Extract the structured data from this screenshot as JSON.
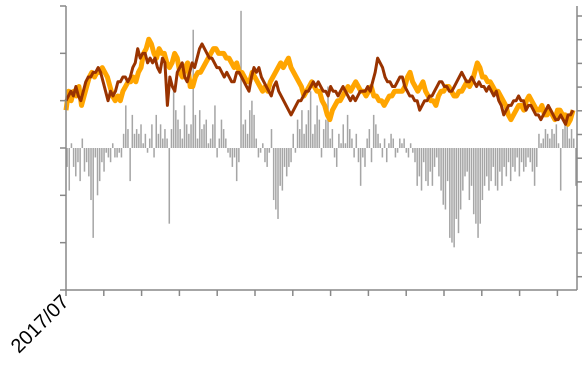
{
  "chart_data": {
    "type": "line",
    "title": "",
    "x_tick_labels": [
      "2017/07"
    ],
    "series": [
      {
        "role": "bar",
        "color": "#a6a6a6",
        "values": [
          -0.4,
          -0.9,
          0.1,
          -0.4,
          -0.6,
          -0.3,
          -0.7,
          0.2,
          -0.5,
          -0.3,
          -0.6,
          -1.1,
          -1.9,
          -0.2,
          -1.0,
          -0.7,
          -0.3,
          -0.5,
          -0.1,
          -0.2,
          -0.3,
          0.1,
          -0.2,
          -0.2,
          -0.1,
          -0.2,
          0.3,
          0.9,
          0.4,
          -0.7,
          0.7,
          0.3,
          0.4,
          0.3,
          0.5,
          0.1,
          0.3,
          -0.1,
          0.2,
          0.5,
          -0.2,
          0.7,
          0.3,
          0.5,
          0.2,
          0.4,
          0.2,
          -1.6,
          0.4,
          1.2,
          0.8,
          0.6,
          0.4,
          0.2,
          0.9,
          0.5,
          0.3,
          0.5,
          2.5,
          0.7,
          0.2,
          0.8,
          0.4,
          0.5,
          0.6,
          0.1,
          0.2,
          0.5,
          0.9,
          -0.2,
          0.2,
          0.6,
          0.4,
          0.2,
          -0.1,
          -0.2,
          -0.4,
          -0.2,
          -0.7,
          -0.3,
          2.9,
          0.5,
          0.6,
          0.3,
          0.8,
          1.0,
          0.7,
          0.2,
          -0.2,
          -0.1,
          0.1,
          -0.3,
          -0.4,
          -0.1,
          0.4,
          -1.1,
          -1.3,
          -1.5,
          -0.8,
          -0.9,
          -0.4,
          -0.6,
          -0.4,
          -0.3,
          0.3,
          -0.1,
          0.6,
          0.4,
          0.8,
          0.3,
          0.5,
          0.8,
          1.2,
          0.3,
          0.5,
          0.9,
          0.6,
          -0.2,
          0.4,
          0.6,
          1.3,
          0.2,
          0.4,
          -0.2,
          -0.4,
          0.3,
          0.1,
          0.5,
          0.1,
          0.7,
          0.4,
          0.2,
          -0.2,
          0.3,
          -0.3,
          -0.8,
          -0.2,
          -0.4,
          0.2,
          0.4,
          -0.3,
          0.7,
          0.5,
          0.3,
          0.1,
          -0.2,
          0.2,
          -0.3,
          0.1,
          0.3,
          0.2,
          -0.2,
          -0.1,
          0.2,
          0.1,
          0.2,
          -0.1,
          -0.2,
          0.1,
          -0.1,
          -0.3,
          -0.8,
          -0.6,
          -0.9,
          -0.3,
          -0.7,
          -0.8,
          -0.5,
          -0.8,
          -0.4,
          -0.2,
          -0.6,
          -0.9,
          -1.2,
          -1.3,
          -0.7,
          -1.9,
          -2.0,
          -2.1,
          -1.5,
          -1.8,
          -1.3,
          -0.9,
          -0.6,
          -0.5,
          -1.1,
          -0.8,
          -1.4,
          -1.6,
          -1.9,
          -1.6,
          -1.1,
          -0.8,
          -0.6,
          -0.9,
          -0.7,
          -0.4,
          -0.8,
          -0.9,
          -0.5,
          -0.8,
          -0.4,
          -0.6,
          -0.3,
          -0.7,
          -0.4,
          -0.5,
          -0.2,
          -0.6,
          -0.3,
          -0.5,
          -0.4,
          -0.2,
          -0.3,
          -0.5,
          -0.8,
          -0.4,
          0.3,
          0.1,
          0.2,
          0.4,
          0.3,
          0.2,
          0.4,
          0.3,
          0.5,
          0.1,
          -0.9,
          0.4,
          0.6,
          0.5,
          0.2,
          0.4,
          0.2,
          -0.8
        ]
      },
      {
        "role": "line",
        "color": "#ffa500",
        "values": [
          0.8,
          1.2,
          1.0,
          1.2,
          1.1,
          1.3,
          0.9,
          1.1,
          1.3,
          1.5,
          1.6,
          1.5,
          1.6,
          1.6,
          1.7,
          1.6,
          1.5,
          1.3,
          1.1,
          1.0,
          1.1,
          1.0,
          1.2,
          1.3,
          1.4,
          1.4,
          1.5,
          1.4,
          1.6,
          1.7,
          2.0,
          2.1,
          2.3,
          2.2,
          2.0,
          1.9,
          2.1,
          2.0,
          2.0,
          1.8,
          1.7,
          1.8,
          2.0,
          1.9,
          1.6,
          1.5,
          1.7,
          1.8,
          1.3,
          1.3,
          1.5,
          1.6,
          1.6,
          1.7,
          1.8,
          1.9,
          2.0,
          2.1,
          2.1,
          2.0,
          2.0,
          2.0,
          1.9,
          1.9,
          1.8,
          1.7,
          1.8,
          1.6,
          1.6,
          1.5,
          1.4,
          1.4,
          1.6,
          1.5,
          1.4,
          1.3,
          1.2,
          1.3,
          1.2,
          1.4,
          1.5,
          1.6,
          1.7,
          1.8,
          1.7,
          1.8,
          1.9,
          1.7,
          1.6,
          1.5,
          1.4,
          1.3,
          1.1,
          1.2,
          1.3,
          1.4,
          1.3,
          1.2,
          1.2,
          1.0,
          0.9,
          0.7,
          0.6,
          0.8,
          0.9,
          1.0,
          1.0,
          1.1,
          1.2,
          1.3,
          1.2,
          1.3,
          1.4,
          1.3,
          1.2,
          1.2,
          1.1,
          1.2,
          1.3,
          1.1,
          1.1,
          1.0,
          1.0,
          0.9,
          1.0,
          1.1,
          1.1,
          1.2,
          1.2,
          1.2,
          1.2,
          1.3,
          1.5,
          1.6,
          1.4,
          1.3,
          1.2,
          1.3,
          1.4,
          1.2,
          1.1,
          1.0,
          1.0,
          0.9,
          1.1,
          1.2,
          1.2,
          1.3,
          1.3,
          1.2,
          1.1,
          1.1,
          1.2,
          1.2,
          1.3,
          1.4,
          1.3,
          1.4,
          1.6,
          1.8,
          1.7,
          1.5,
          1.5,
          1.4,
          1.4,
          1.3,
          1.2,
          1.2,
          1.1,
          1.0,
          0.9,
          0.7,
          0.6,
          0.7,
          0.8,
          0.9,
          0.9,
          0.8,
          1.0,
          1.1,
          1.0,
          0.9,
          0.8,
          0.8,
          0.9,
          0.7,
          0.7,
          0.8,
          0.7,
          0.6,
          0.8,
          0.8,
          0.7,
          0.7,
          0.5,
          0.6,
          0.8
        ],
        "x_from": 0,
        "x_to": 1
      },
      {
        "role": "line",
        "color": "#993300",
        "values": [
          1.0,
          1.1,
          1.2,
          1.1,
          1.3,
          1.1,
          1.0,
          1.2,
          1.4,
          1.5,
          1.5,
          1.6,
          1.6,
          1.7,
          1.6,
          1.4,
          1.2,
          1.0,
          1.2,
          1.1,
          1.2,
          1.4,
          1.4,
          1.5,
          1.5,
          1.4,
          1.5,
          1.7,
          1.8,
          2.1,
          1.9,
          2.0,
          2.0,
          1.8,
          1.9,
          1.8,
          1.9,
          1.7,
          1.6,
          1.9,
          1.8,
          0.9,
          1.5,
          1.3,
          1.2,
          1.6,
          1.7,
          1.8,
          1.5,
          1.4,
          1.6,
          1.8,
          1.7,
          1.9,
          2.1,
          2.2,
          2.1,
          2.0,
          1.9,
          1.9,
          1.8,
          1.7,
          1.7,
          1.6,
          1.5,
          1.6,
          1.5,
          1.4,
          1.4,
          1.6,
          1.6,
          1.5,
          1.4,
          1.3,
          1.2,
          1.5,
          1.7,
          1.6,
          1.7,
          1.5,
          1.4,
          1.3,
          1.2,
          1.1,
          1.3,
          1.4,
          1.2,
          1.1,
          1.0,
          0.9,
          0.8,
          0.7,
          0.8,
          0.9,
          1.0,
          1.0,
          1.1,
          1.2,
          1.2,
          1.3,
          1.4,
          1.3,
          1.4,
          1.3,
          1.2,
          1.2,
          1.1,
          1.3,
          1.2,
          1.2,
          1.1,
          1.2,
          1.3,
          1.2,
          1.1,
          1.0,
          1.1,
          1.0,
          1.1,
          1.2,
          1.2,
          1.2,
          1.3,
          1.2,
          1.4,
          1.6,
          1.9,
          1.8,
          1.7,
          1.5,
          1.4,
          1.4,
          1.3,
          1.3,
          1.4,
          1.5,
          1.5,
          1.3,
          1.2,
          1.1,
          1.1,
          1.0,
          1.0,
          0.8,
          0.9,
          1.0,
          1.0,
          1.1,
          1.1,
          1.2,
          1.3,
          1.4,
          1.4,
          1.3,
          1.3,
          1.2,
          1.2,
          1.3,
          1.4,
          1.5,
          1.6,
          1.5,
          1.4,
          1.4,
          1.5,
          1.4,
          1.3,
          1.4,
          1.3,
          1.3,
          1.2,
          1.3,
          1.2,
          1.1,
          1.2,
          1.0,
          0.9,
          0.7,
          0.8,
          0.9,
          0.9,
          1.0,
          1.0,
          1.1,
          1.0,
          1.0,
          0.8,
          0.9,
          0.9,
          0.8,
          0.7,
          0.7,
          0.6,
          0.7,
          0.8,
          0.9,
          0.8,
          0.7,
          0.6,
          0.6,
          0.7,
          0.6,
          0.5,
          0.7,
          0.7,
          0.8
        ],
        "x_from": 0,
        "x_to": 1
      }
    ],
    "left_axis_ticks": 7,
    "right_axis_ticks": 12,
    "x_axis_ticks": 14,
    "grid": false,
    "legend": "none"
  }
}
